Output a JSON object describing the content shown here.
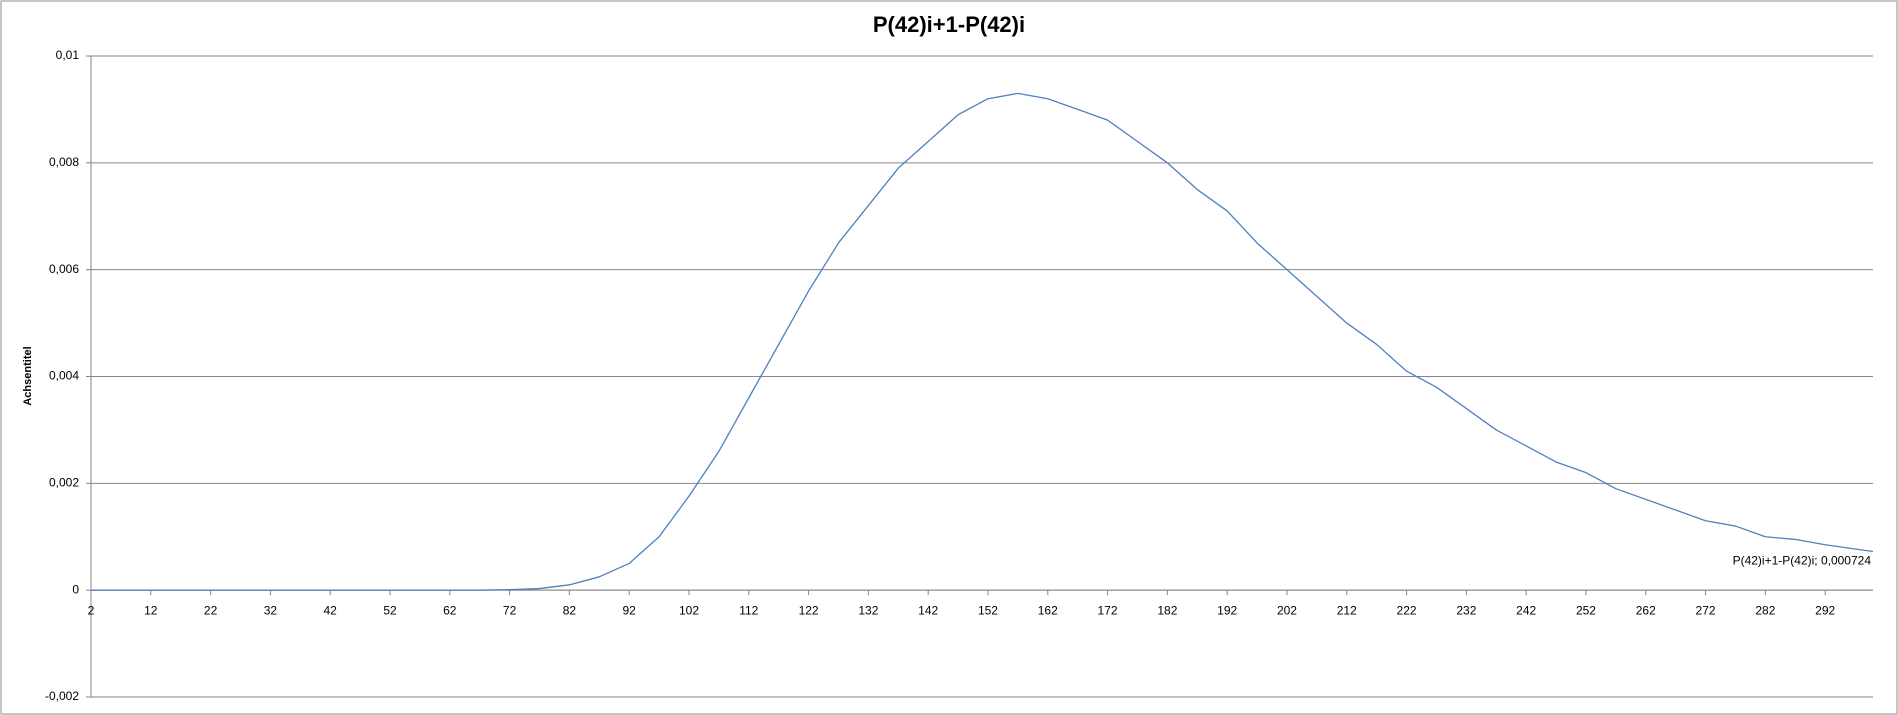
{
  "chart_data": {
    "type": "line",
    "title": "P(42)i+1-P(42)i",
    "y_label": "Achsentitel",
    "x": [
      2,
      7,
      12,
      17,
      22,
      27,
      32,
      37,
      42,
      47,
      52,
      57,
      62,
      67,
      72,
      77,
      82,
      87,
      92,
      97,
      102,
      107,
      112,
      117,
      122,
      127,
      132,
      137,
      142,
      147,
      152,
      157,
      162,
      167,
      172,
      177,
      182,
      187,
      192,
      197,
      202,
      207,
      212,
      217,
      222,
      227,
      232,
      237,
      242,
      247,
      252,
      257,
      262,
      267,
      272,
      277,
      282,
      287,
      292,
      297,
      300
    ],
    "series": [
      {
        "name": "P(42)i+1-P(42)i",
        "color": "#4f81bd",
        "values": [
          0,
          0,
          0,
          0,
          0,
          0,
          0,
          0,
          0,
          0,
          0,
          0,
          0,
          0,
          1e-05,
          3e-05,
          0.0001,
          0.00025,
          0.0005,
          0.001,
          0.00176,
          0.0026,
          0.0036,
          0.0046,
          0.0056,
          0.0065,
          0.0072,
          0.0079,
          0.0084,
          0.0089,
          0.0092,
          0.0093,
          0.0092,
          0.009,
          0.0088,
          0.0084,
          0.008,
          0.0075,
          0.0071,
          0.0065,
          0.006,
          0.0055,
          0.005,
          0.0046,
          0.0041,
          0.0038,
          0.0034,
          0.003,
          0.0027,
          0.0024,
          0.0022,
          0.0019,
          0.0017,
          0.0015,
          0.0013,
          0.0012,
          0.001,
          0.00095,
          0.00085,
          0.00077,
          0.000724
        ],
        "value_labels": [
          null,
          null,
          null,
          null,
          null,
          null,
          null,
          null,
          null,
          null,
          null,
          null,
          null,
          null,
          null,
          null,
          null,
          null,
          null,
          null,
          null,
          null,
          null,
          null,
          null,
          null,
          null,
          null,
          null,
          null,
          null,
          null,
          null,
          null,
          null,
          null,
          null,
          null,
          null,
          null,
          null,
          null,
          null,
          null,
          null,
          null,
          null,
          null,
          null,
          null,
          null,
          null,
          null,
          null,
          null,
          null,
          null,
          null,
          null,
          null,
          "P(42)i+1-P(42)i; 0,000724"
        ]
      }
    ],
    "xlim": [
      2,
      300
    ],
    "xticks": [
      2,
      12,
      22,
      32,
      42,
      52,
      62,
      72,
      82,
      92,
      102,
      112,
      122,
      132,
      142,
      152,
      162,
      172,
      182,
      192,
      202,
      212,
      222,
      232,
      242,
      252,
      262,
      272,
      282,
      292
    ],
    "ylim": [
      -0.002,
      0.01
    ],
    "yticks": [
      {
        "value": -0.002,
        "label": "-0,002"
      },
      0,
      {
        "value": 0.002,
        "label": "0,002"
      },
      {
        "value": 0.004,
        "label": "0,004"
      },
      {
        "value": 0.006,
        "label": "0,006"
      },
      {
        "value": 0.008,
        "label": "0,008"
      },
      {
        "value": 0.01,
        "label": "0,01"
      }
    ],
    "grid": true
  }
}
